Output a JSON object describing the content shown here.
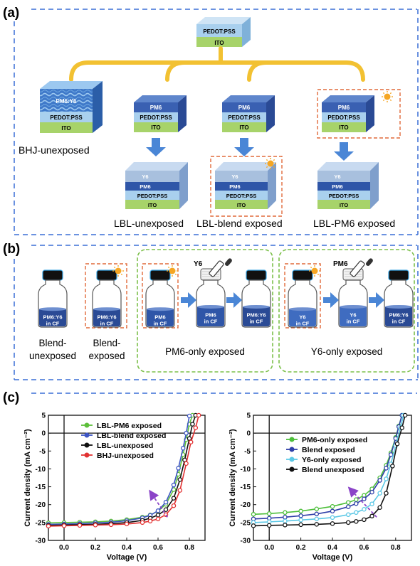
{
  "panels": {
    "a": "(a)",
    "b": "(b)",
    "c": "(c)"
  },
  "panel_a": {
    "substrate": {
      "pedot": "PEDOT:PSS",
      "ito": "ITO"
    },
    "bhj_active": "PM6:Y6",
    "pm6": "PM6",
    "y6": "Y6",
    "mix_label": "PM6",
    "labels": [
      "BHJ-unexposed",
      "LBL-unexposed",
      "LBL-blend exposed",
      "LBL-PM6 exposed"
    ]
  },
  "panel_b": {
    "vials": {
      "blend": "PM6:Y6",
      "pm6": "PM6",
      "y6": "Y6",
      "solvent": "in CF"
    },
    "dropper_y6": "Y6",
    "dropper_pm6": "PM6",
    "labels": {
      "blend_unexposed_1": "Blend-",
      "blend_unexposed_2": "unexposed",
      "blend_exposed_1": "Blend-",
      "blend_exposed_2": "exposed",
      "pm6_only": "PM6-only exposed",
      "y6_only": "Y6-only exposed"
    }
  },
  "colors": {
    "dashed_blue": "#3a6fd6",
    "dashed_orange": "#e06a3a",
    "dashed_green": "#7cc04a",
    "arrow_blue": "#4a86d6",
    "gold": "#f2c132",
    "pm6_dark": "#2f4f9e",
    "pm6_light": "#5578c4",
    "pedot": "#9fc4e6",
    "ito": "#a7d36a",
    "y6": "#a8c0de",
    "sun": "#f5a623"
  },
  "chart_data": [
    {
      "type": "line",
      "title": "",
      "xlabel": "Voltage (V)",
      "ylabel": "Current density (mA cm⁻²)",
      "xlim": [
        -0.1,
        0.9
      ],
      "ylim": [
        -30,
        5
      ],
      "xticks": [
        "0.0",
        "0.2",
        "0.4",
        "0.6",
        "0.8"
      ],
      "yticks": [
        "5",
        "0",
        "-5",
        "-10",
        "-15",
        "-20",
        "-25",
        "-30"
      ],
      "legend_position": "top-right",
      "series": [
        {
          "name": "LBL-PM6 exposed",
          "color": "#5dbf3a",
          "jsc": -25.0,
          "voc": 0.79,
          "ff": 0.66,
          "x": [
            -0.1,
            0.0,
            0.1,
            0.2,
            0.3,
            0.4,
            0.5,
            0.55,
            0.6,
            0.65,
            0.7,
            0.73,
            0.76,
            0.78,
            0.8,
            0.82
          ],
          "y": [
            -25.1,
            -25.0,
            -24.9,
            -24.8,
            -24.6,
            -24.2,
            -23.5,
            -22.9,
            -21.8,
            -19.9,
            -15.8,
            -11.5,
            -6.0,
            -1.8,
            2.5,
            5.0
          ]
        },
        {
          "name": "LBL-blend exposed",
          "color": "#3d55c4",
          "jsc": -25.4,
          "voc": 0.78,
          "ff": 0.64,
          "x": [
            -0.1,
            0.0,
            0.1,
            0.2,
            0.3,
            0.4,
            0.5,
            0.55,
            0.6,
            0.65,
            0.7,
            0.73,
            0.76,
            0.78,
            0.8
          ],
          "y": [
            -25.5,
            -25.4,
            -25.3,
            -25.1,
            -24.9,
            -24.5,
            -23.7,
            -23.0,
            -21.7,
            -19.3,
            -14.5,
            -9.8,
            -4.2,
            0.0,
            4.8
          ]
        },
        {
          "name": "LBL-unexposed",
          "color": "#111111",
          "jsc": -25.7,
          "voc": 0.82,
          "ff": 0.7,
          "x": [
            -0.1,
            0.0,
            0.1,
            0.2,
            0.3,
            0.4,
            0.5,
            0.55,
            0.6,
            0.65,
            0.7,
            0.74,
            0.77,
            0.8,
            0.82,
            0.84
          ],
          "y": [
            -25.8,
            -25.7,
            -25.6,
            -25.5,
            -25.3,
            -25.0,
            -24.4,
            -23.8,
            -22.9,
            -21.4,
            -18.2,
            -13.0,
            -7.5,
            -1.5,
            2.5,
            5.0
          ]
        },
        {
          "name": "BHJ-unexposed",
          "color": "#e23232",
          "jsc": -25.9,
          "voc": 0.84,
          "ff": 0.73,
          "x": [
            -0.1,
            0.0,
            0.1,
            0.2,
            0.3,
            0.4,
            0.5,
            0.55,
            0.6,
            0.65,
            0.7,
            0.74,
            0.78,
            0.81,
            0.84,
            0.86
          ],
          "y": [
            -26.0,
            -25.9,
            -25.8,
            -25.7,
            -25.6,
            -25.4,
            -25.0,
            -24.6,
            -24.0,
            -22.8,
            -20.3,
            -16.0,
            -8.5,
            -2.5,
            1.5,
            5.0
          ]
        }
      ]
    },
    {
      "type": "line",
      "title": "",
      "xlabel": "Voltage (V)",
      "ylabel": "Current density (mA cm⁻²)",
      "xlim": [
        -0.1,
        0.9
      ],
      "ylim": [
        -30,
        5
      ],
      "xticks": [
        "0.0",
        "0.2",
        "0.4",
        "0.6",
        "0.8"
      ],
      "yticks": [
        "5",
        "0",
        "-5",
        "-10",
        "-15",
        "-20",
        "-25",
        "-30"
      ],
      "legend_position": "top-right",
      "series": [
        {
          "name": "PM6-only exposed",
          "color": "#4dbf3a",
          "x": [
            -0.1,
            0.0,
            0.1,
            0.2,
            0.3,
            0.4,
            0.5,
            0.55,
            0.6,
            0.65,
            0.7,
            0.74,
            0.77,
            0.8,
            0.82,
            0.84
          ],
          "y": [
            -22.7,
            -22.5,
            -22.2,
            -21.8,
            -21.2,
            -20.5,
            -19.4,
            -18.6,
            -17.4,
            -15.6,
            -12.5,
            -9.0,
            -5.5,
            -1.2,
            2.0,
            5.0
          ]
        },
        {
          "name": "Blend exposed",
          "color": "#2f3fa8",
          "x": [
            -0.1,
            0.0,
            0.1,
            0.2,
            0.3,
            0.4,
            0.5,
            0.55,
            0.6,
            0.65,
            0.7,
            0.74,
            0.77,
            0.8,
            0.82,
            0.84
          ],
          "y": [
            -24.0,
            -23.8,
            -23.5,
            -23.1,
            -22.6,
            -21.8,
            -20.6,
            -19.7,
            -18.4,
            -16.5,
            -13.2,
            -9.8,
            -6.0,
            -1.5,
            1.8,
            5.0
          ]
        },
        {
          "name": "Y6-only exposed",
          "color": "#5cc8e6",
          "x": [
            -0.1,
            0.0,
            0.1,
            0.2,
            0.3,
            0.4,
            0.5,
            0.55,
            0.6,
            0.65,
            0.7,
            0.74,
            0.77,
            0.8,
            0.83,
            0.85
          ],
          "y": [
            -25.0,
            -24.8,
            -24.6,
            -24.3,
            -24.0,
            -23.6,
            -22.8,
            -22.2,
            -21.3,
            -19.8,
            -16.8,
            -12.8,
            -8.6,
            -3.5,
            1.5,
            5.0
          ]
        },
        {
          "name": "Blend unexposed",
          "color": "#111111",
          "x": [
            -0.1,
            0.0,
            0.1,
            0.2,
            0.3,
            0.4,
            0.5,
            0.55,
            0.6,
            0.65,
            0.7,
            0.74,
            0.78,
            0.81,
            0.84,
            0.86
          ],
          "y": [
            -25.9,
            -25.8,
            -25.7,
            -25.6,
            -25.5,
            -25.3,
            -25.0,
            -24.7,
            -24.2,
            -23.2,
            -20.8,
            -16.8,
            -9.2,
            -3.0,
            1.5,
            5.0
          ]
        }
      ]
    }
  ]
}
